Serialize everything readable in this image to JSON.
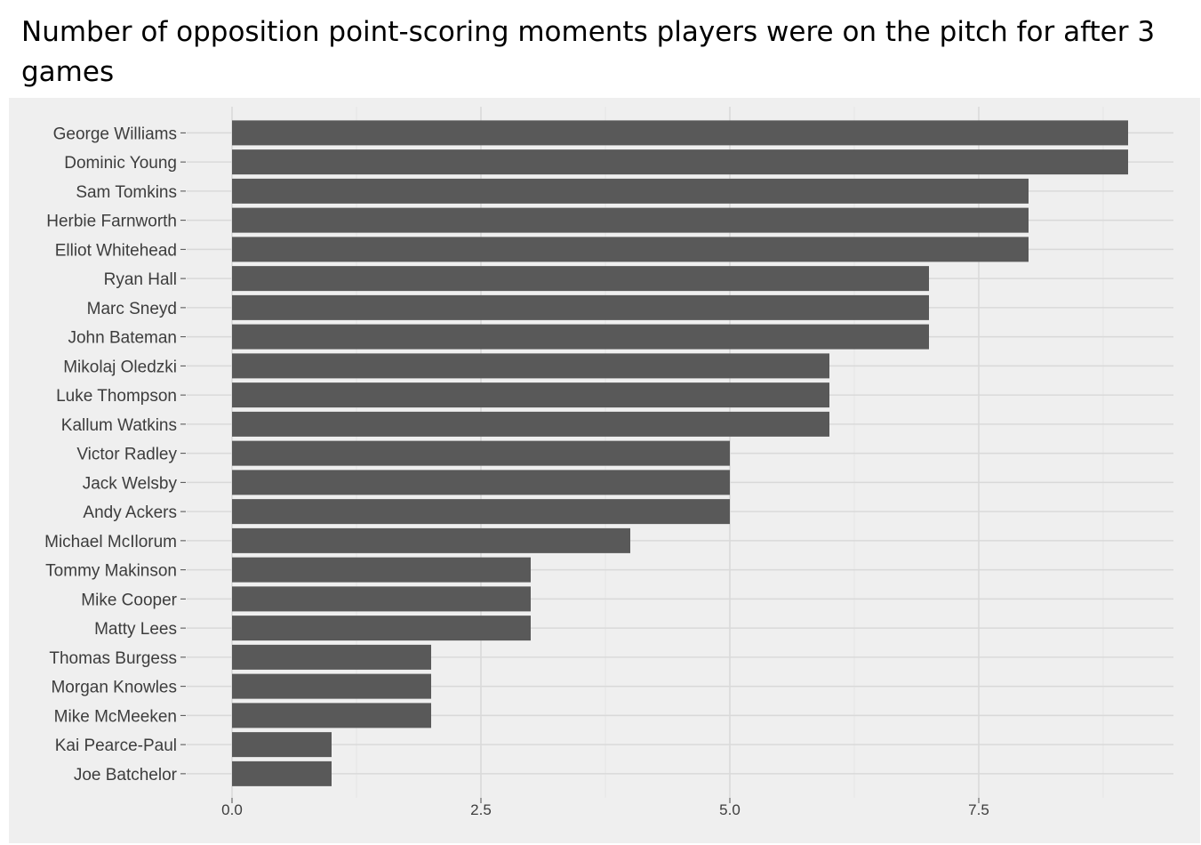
{
  "title": "Number of opposition point-scoring moments players were on the pitch for after 3 games",
  "chart_data": {
    "type": "bar",
    "orientation": "horizontal",
    "title": "Number of opposition point-scoring moments players were on the pitch for after 3 games",
    "xlabel": "",
    "ylabel": "",
    "categories": [
      "George Williams",
      "Dominic Young",
      "Sam Tomkins",
      "Herbie Farnworth",
      "Elliot Whitehead",
      "Ryan Hall",
      "Marc Sneyd",
      "John Bateman",
      "Mikolaj Oledzki",
      "Luke Thompson",
      "Kallum Watkins",
      "Victor Radley",
      "Jack Welsby",
      "Andy Ackers",
      "Michael McIlorum",
      "Tommy Makinson",
      "Mike Cooper",
      "Matty Lees",
      "Thomas Burgess",
      "Morgan Knowles",
      "Mike McMeeken",
      "Kai Pearce-Paul",
      "Joe Batchelor"
    ],
    "values": [
      9,
      9,
      8,
      8,
      8,
      7,
      7,
      7,
      6,
      6,
      6,
      5,
      5,
      5,
      4,
      3,
      3,
      3,
      2,
      2,
      2,
      1,
      1
    ],
    "xlim": [
      -0.45,
      9.45
    ],
    "x_ticks": [
      "0.0",
      "2.5",
      "5.0",
      "7.5"
    ],
    "grid": true,
    "bar_color": "#595959",
    "panel_background": "#efefef",
    "grid_color": "#d9d9d9"
  }
}
